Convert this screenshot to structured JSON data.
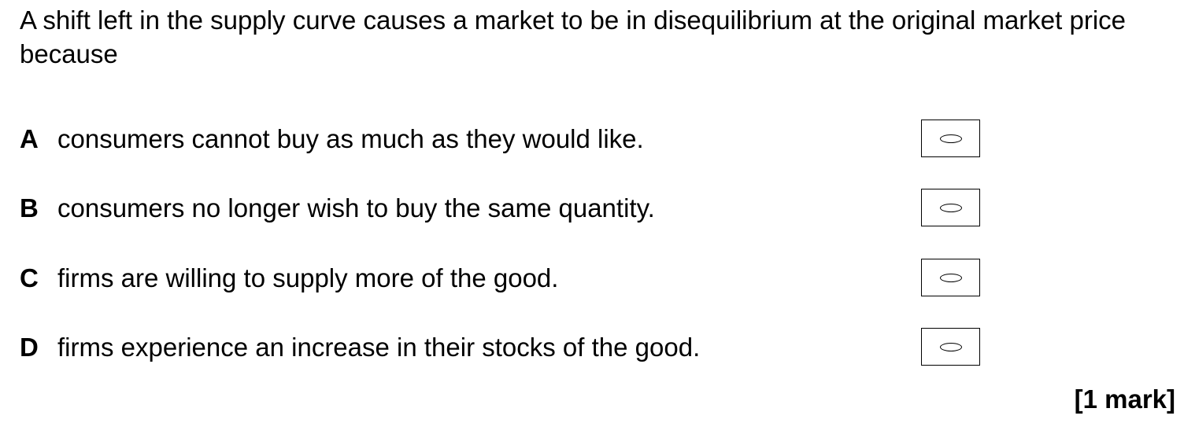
{
  "question": {
    "text": "A shift left in the supply curve causes a market to be in disequilibrium at the original market price because"
  },
  "options": [
    {
      "letter": "A",
      "text": "consumers cannot buy as much as they would like."
    },
    {
      "letter": "B",
      "text": "consumers no longer wish to buy the same quantity."
    },
    {
      "letter": "C",
      "text": "firms are willing to supply more of the good."
    },
    {
      "letter": "D",
      "text": "firms experience an increase in their stocks of the good."
    }
  ],
  "marks": "[1 mark]"
}
